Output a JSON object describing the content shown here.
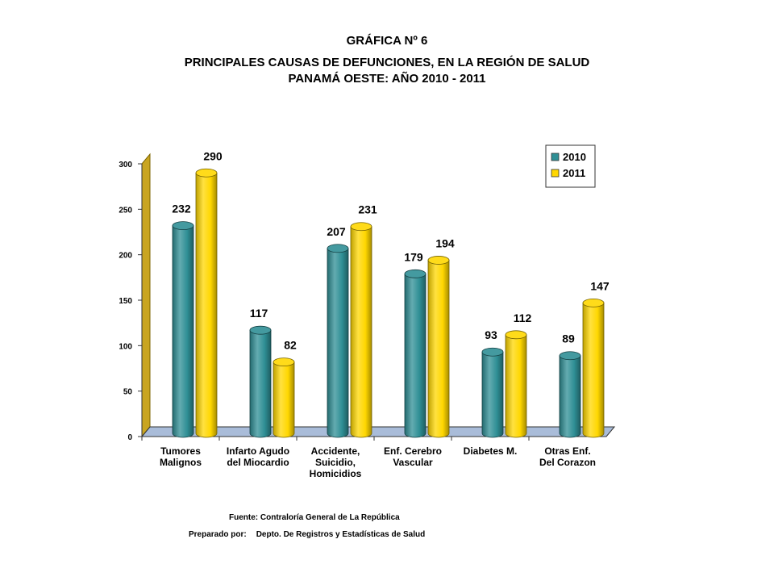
{
  "figure_number": "GRÁFICA Nº 6",
  "title_line1": "PRINCIPALES CAUSAS DE DEFUNCIONES, EN LA REGIÓN DE SALUD",
  "title_line2": "PANAMÁ OESTE: AÑO 2010 - 2011",
  "footer": {
    "source": "Fuente: Contraloría General de La República",
    "prepared_label": "Preparado por:",
    "prepared_value": "Depto. De Registros y Estadísticas de Salud"
  },
  "colors": {
    "series_2010": "#2f8f95",
    "series_2011": "#ffd700",
    "floor": "#a9bcd9",
    "wall": "#ffffff",
    "wall_edge": "#b8960b"
  },
  "chart_data": {
    "type": "bar",
    "style": "3d-cylinder",
    "categories": [
      [
        "Tumores",
        "Malignos"
      ],
      [
        "Infarto Agudo",
        "del Miocardio"
      ],
      [
        "Accidente,",
        "Suicidio,",
        "Homicidios"
      ],
      [
        "Enf. Cerebro",
        "Vascular"
      ],
      [
        "Diabetes M."
      ],
      [
        "Otras Enf.",
        "Del Corazon"
      ]
    ],
    "series": [
      {
        "name": "2010",
        "values": [
          232,
          117,
          207,
          179,
          93,
          89
        ]
      },
      {
        "name": "2011",
        "values": [
          290,
          82,
          231,
          194,
          112,
          147
        ]
      }
    ],
    "ylim": [
      0,
      300
    ],
    "yticks": [
      0,
      50,
      100,
      150,
      200,
      250,
      300
    ],
    "data_labels": true,
    "legend": "top-right",
    "grid": false
  }
}
